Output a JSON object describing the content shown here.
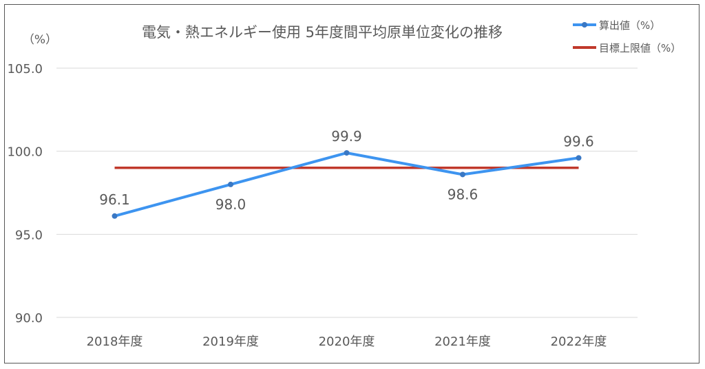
{
  "chart_data": {
    "type": "line",
    "title": "電気・熱エネルギー使用 5年度間平均原単位変化の推移",
    "ylabel": "（%）",
    "xlabel": "",
    "categories": [
      "2018年度",
      "2019年度",
      "2020年度",
      "2021年度",
      "2022年度"
    ],
    "ylim": [
      90.0,
      105.0
    ],
    "yticks": [
      "90.0",
      "95.0",
      "100.0",
      "105.0"
    ],
    "grid": true,
    "legend_position": "top-right",
    "series": [
      {
        "name": "算出値（%）",
        "values": [
          96.1,
          98.0,
          99.9,
          98.6,
          99.6
        ],
        "labels": [
          "96.1",
          "98.0",
          "99.9",
          "98.6",
          "99.6"
        ],
        "label_side": [
          "above",
          "below",
          "above",
          "below",
          "above"
        ],
        "color": "#3d94f0",
        "marker": "circle"
      },
      {
        "name": "目標上限値（%）",
        "values": [
          99.0,
          99.0,
          99.0,
          99.0,
          99.0
        ],
        "color": "#c0392b",
        "marker": "none"
      }
    ]
  }
}
